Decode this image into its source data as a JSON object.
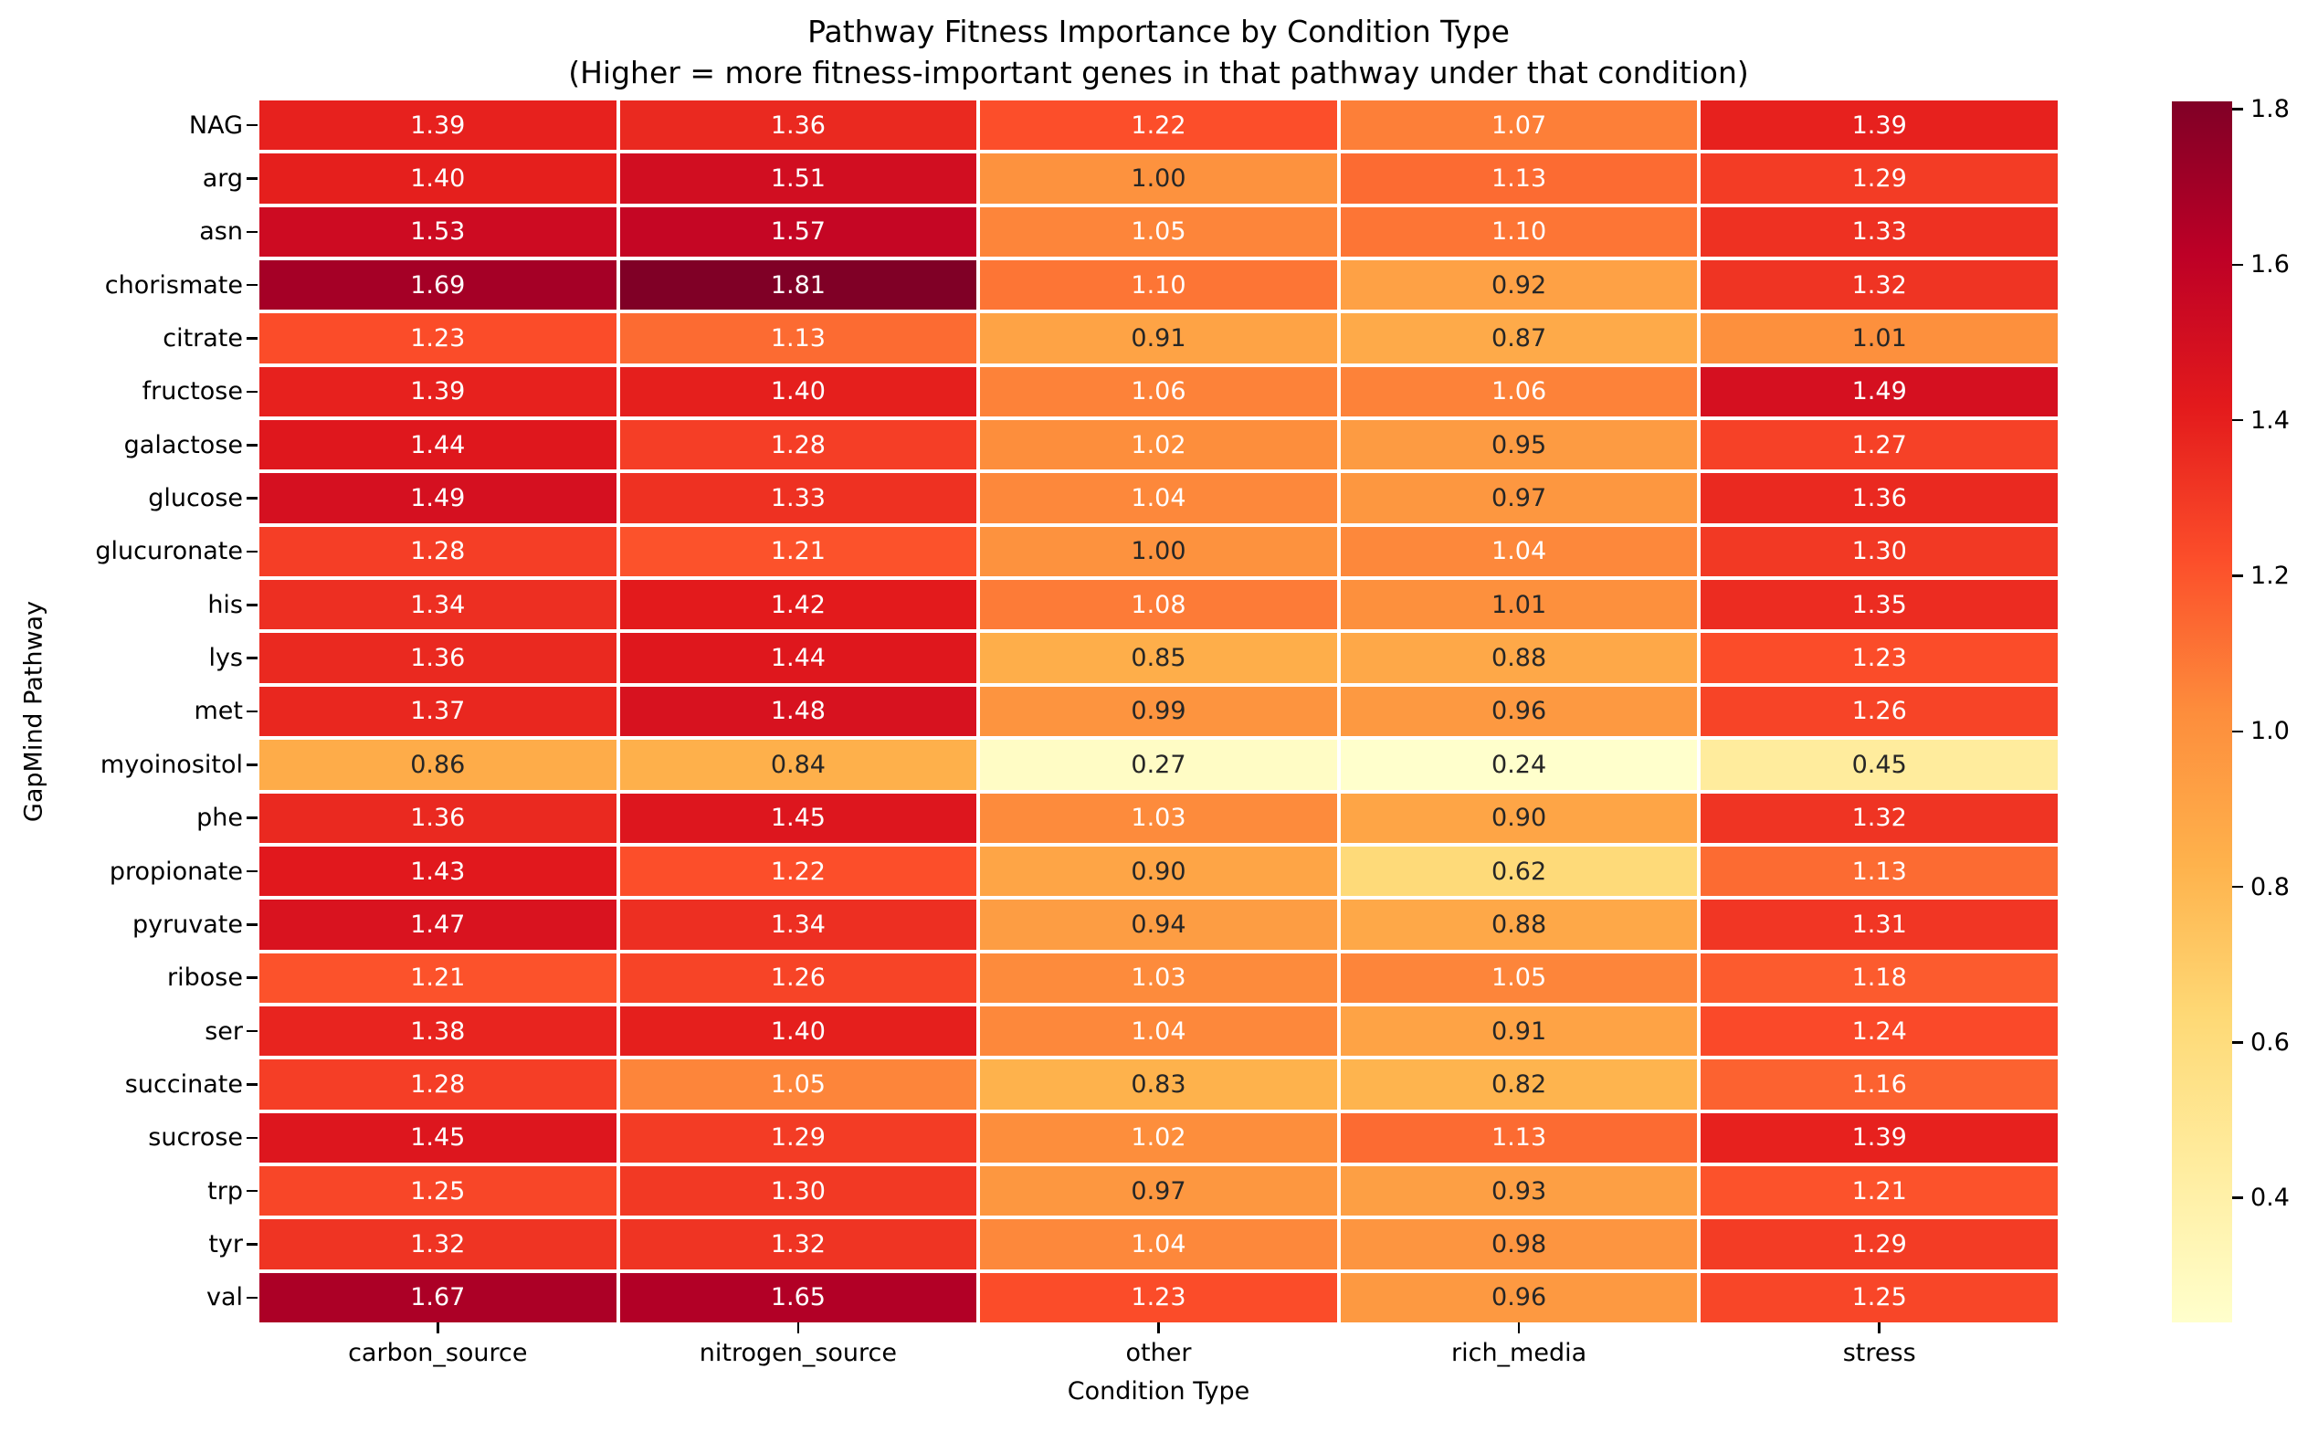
{
  "title": "Pathway Fitness Importance by Condition Type",
  "subtitle": "(Higher = more fitness-important genes in that pathway under that condition)",
  "chart_data": {
    "type": "heatmap",
    "xlabel": "Condition Type",
    "ylabel": "GapMind Pathway",
    "columns": [
      "carbon_source",
      "nitrogen_source",
      "other",
      "rich_media",
      "stress"
    ],
    "rows": [
      "NAG",
      "arg",
      "asn",
      "chorismate",
      "citrate",
      "fructose",
      "galactose",
      "glucose",
      "glucuronate",
      "his",
      "lys",
      "met",
      "myoinositol",
      "phe",
      "propionate",
      "pyruvate",
      "ribose",
      "ser",
      "succinate",
      "sucrose",
      "trp",
      "tyr",
      "val"
    ],
    "values": [
      [
        1.39,
        1.36,
        1.22,
        1.07,
        1.39
      ],
      [
        1.4,
        1.51,
        1.0,
        1.13,
        1.29
      ],
      [
        1.53,
        1.57,
        1.05,
        1.1,
        1.33
      ],
      [
        1.69,
        1.81,
        1.1,
        0.92,
        1.32
      ],
      [
        1.23,
        1.13,
        0.91,
        0.87,
        1.01
      ],
      [
        1.39,
        1.4,
        1.06,
        1.06,
        1.49
      ],
      [
        1.44,
        1.28,
        1.02,
        0.95,
        1.27
      ],
      [
        1.49,
        1.33,
        1.04,
        0.97,
        1.36
      ],
      [
        1.28,
        1.21,
        1.0,
        1.04,
        1.3
      ],
      [
        1.34,
        1.42,
        1.08,
        1.01,
        1.35
      ],
      [
        1.36,
        1.44,
        0.85,
        0.88,
        1.23
      ],
      [
        1.37,
        1.48,
        0.99,
        0.96,
        1.26
      ],
      [
        0.86,
        0.84,
        0.27,
        0.24,
        0.45
      ],
      [
        1.36,
        1.45,
        1.03,
        0.9,
        1.32
      ],
      [
        1.43,
        1.22,
        0.9,
        0.62,
        1.13
      ],
      [
        1.47,
        1.34,
        0.94,
        0.88,
        1.31
      ],
      [
        1.21,
        1.26,
        1.03,
        1.05,
        1.18
      ],
      [
        1.38,
        1.4,
        1.04,
        0.91,
        1.24
      ],
      [
        1.28,
        1.05,
        0.83,
        0.82,
        1.16
      ],
      [
        1.45,
        1.29,
        1.02,
        1.13,
        1.39
      ],
      [
        1.25,
        1.3,
        0.97,
        0.93,
        1.21
      ],
      [
        1.32,
        1.32,
        1.04,
        0.98,
        1.29
      ],
      [
        1.67,
        1.65,
        1.23,
        0.96,
        1.25
      ]
    ],
    "vmin": 0.24,
    "vmax": 1.81,
    "colormap": "YlOrRd",
    "colormap_stops": [
      "#ffffcc",
      "#ffeda0",
      "#fed976",
      "#feb24c",
      "#fd8d3c",
      "#fc4e2a",
      "#e31a1c",
      "#bd0026",
      "#800026"
    ],
    "colorbar_ticks": [
      1.8,
      1.6,
      1.4,
      1.2,
      1.0,
      0.8,
      0.6,
      0.4
    ],
    "annotation_colors": {
      "dark": "#262626",
      "light": "#ffffff"
    },
    "grid_line_color": "#ffffff",
    "legend_position": "right"
  }
}
